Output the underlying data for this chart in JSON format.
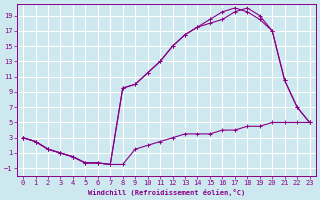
{
  "xlabel": "Windchill (Refroidissement éolien,°C)",
  "background_color": "#cde8ef",
  "grid_color": "#ffffff",
  "line_color": "#880088",
  "xlim": [
    -0.5,
    23.5
  ],
  "ylim": [
    -2.0,
    20.5
  ],
  "xticks": [
    0,
    1,
    2,
    3,
    4,
    5,
    6,
    7,
    8,
    9,
    10,
    11,
    12,
    13,
    14,
    15,
    16,
    17,
    18,
    19,
    20,
    21,
    22,
    23
  ],
  "yticks": [
    -1,
    1,
    3,
    5,
    7,
    9,
    11,
    13,
    15,
    17,
    19
  ],
  "line1_x": [
    0,
    1,
    2,
    3,
    4,
    5,
    6,
    7,
    8,
    9,
    10,
    11,
    12,
    13,
    14,
    15,
    16,
    17,
    18,
    19,
    20,
    21,
    22,
    23
  ],
  "line1_y": [
    3.0,
    2.5,
    1.5,
    1.0,
    0.5,
    -0.3,
    -0.3,
    -0.5,
    -0.5,
    1.5,
    2.0,
    2.5,
    3.0,
    3.5,
    3.5,
    3.5,
    4.0,
    4.0,
    4.5,
    4.5,
    5.0,
    5.0,
    5.0,
    5.0
  ],
  "line2_x": [
    0,
    1,
    2,
    3,
    4,
    5,
    6,
    7,
    8,
    9,
    10,
    11,
    12,
    13,
    14,
    15,
    16,
    17,
    18,
    19,
    20,
    21,
    22,
    23
  ],
  "line2_y": [
    3.0,
    2.5,
    1.5,
    1.0,
    0.5,
    -0.3,
    -0.3,
    -0.5,
    9.5,
    10.0,
    11.5,
    13.0,
    15.0,
    16.5,
    17.5,
    18.0,
    18.5,
    19.5,
    20.0,
    19.0,
    17.0,
    10.5,
    7.0,
    5.0
  ],
  "line3_x": [
    0,
    1,
    2,
    3,
    4,
    5,
    6,
    7,
    8,
    9,
    10,
    11,
    12,
    13,
    14,
    15,
    16,
    17,
    18,
    19,
    20,
    21,
    22,
    23
  ],
  "line3_y": [
    3.0,
    2.5,
    1.5,
    1.0,
    0.5,
    -0.3,
    -0.3,
    -0.5,
    9.5,
    10.0,
    11.5,
    13.0,
    15.0,
    16.5,
    17.5,
    18.5,
    19.5,
    20.0,
    19.5,
    18.5,
    17.0,
    10.5,
    7.0,
    5.0
  ]
}
